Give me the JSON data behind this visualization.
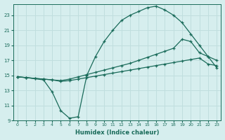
{
  "xlabel": "Humidex (Indice chaleur)",
  "background_color": "#d6eeee",
  "grid_color": "#c0dede",
  "line_color": "#1a6b5a",
  "xlim": [
    -0.5,
    23.5
  ],
  "ylim": [
    9,
    24.5
  ],
  "xticks": [
    0,
    1,
    2,
    3,
    4,
    5,
    6,
    7,
    8,
    9,
    10,
    11,
    12,
    13,
    14,
    15,
    16,
    17,
    18,
    19,
    20,
    21,
    22,
    23
  ],
  "yticks": [
    9,
    11,
    13,
    15,
    17,
    19,
    21,
    23
  ],
  "line1_x": [
    0,
    1,
    3,
    4,
    5,
    6,
    7,
    8,
    9,
    10,
    11,
    12,
    13,
    14,
    15,
    16,
    17,
    18,
    19,
    20,
    21,
    22,
    23
  ],
  "line1_y": [
    14.8,
    14.7,
    14.4,
    12.8,
    10.3,
    9.3,
    9.5,
    15.0,
    17.5,
    19.5,
    21.0,
    22.3,
    23.0,
    23.5,
    24.0,
    24.2,
    23.7,
    23.0,
    22.0,
    20.5,
    19.0,
    17.5,
    16.0
  ],
  "line2_x": [
    0,
    1,
    2,
    3,
    4,
    5,
    6,
    7,
    8,
    9,
    10,
    11,
    12,
    13,
    14,
    15,
    16,
    17,
    18,
    19,
    20,
    21,
    22,
    23
  ],
  "line2_y": [
    14.8,
    14.7,
    14.6,
    14.5,
    14.4,
    14.3,
    14.5,
    14.8,
    15.1,
    15.4,
    15.7,
    16.0,
    16.3,
    16.6,
    17.0,
    17.4,
    17.8,
    18.2,
    18.6,
    19.8,
    19.5,
    18.0,
    17.5,
    17.0
  ],
  "line3_x": [
    0,
    1,
    2,
    3,
    4,
    5,
    6,
    7,
    8,
    9,
    10,
    11,
    12,
    13,
    14,
    15,
    16,
    17,
    18,
    19,
    20,
    21,
    22,
    23
  ],
  "line3_y": [
    14.8,
    14.7,
    14.6,
    14.5,
    14.4,
    14.2,
    14.3,
    14.5,
    14.7,
    14.9,
    15.1,
    15.3,
    15.5,
    15.7,
    15.9,
    16.1,
    16.3,
    16.5,
    16.7,
    16.9,
    17.1,
    17.3,
    16.5,
    16.3
  ]
}
